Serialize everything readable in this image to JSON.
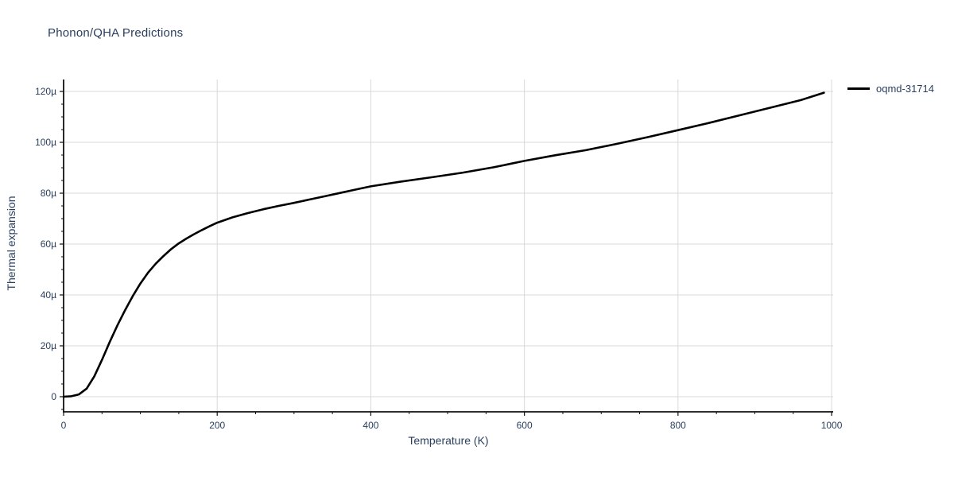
{
  "title": "Phonon/QHA Predictions",
  "colors": {
    "background": "#ffffff",
    "text": "#2a3f5f",
    "axis_line": "#111111",
    "gridline": "#d9d9d9",
    "series_line": "#000000"
  },
  "legend": {
    "items": [
      {
        "label": "oqmd-31714",
        "line_color": "#000000"
      }
    ]
  },
  "chart_data": {
    "type": "line",
    "title": "Phonon/QHA Predictions",
    "xlabel": "Temperature (K)",
    "ylabel": "Thermal expansion",
    "xlim": [
      0,
      1002
    ],
    "ylim": [
      -5.94,
      124.7
    ],
    "grid": true,
    "legend_position": "top-right-outside",
    "x_major_ticks": [
      0,
      200,
      400,
      600,
      800,
      1000
    ],
    "x_tick_labels": [
      "0",
      "200",
      "400",
      "600",
      "800",
      "1000"
    ],
    "x_minor_step": 50,
    "y_major_ticks": [
      0,
      20,
      40,
      60,
      80,
      100,
      120
    ],
    "y_tick_labels": [
      "0",
      "20µ",
      "40µ",
      "60µ",
      "80µ",
      "100µ",
      "120µ"
    ],
    "y_minor_step": 5,
    "series": [
      {
        "name": "oqmd-31714",
        "color": "#000000",
        "x": [
          0,
          10,
          20,
          30,
          40,
          50,
          60,
          70,
          80,
          90,
          100,
          110,
          120,
          130,
          140,
          150,
          160,
          170,
          180,
          190,
          200,
          220,
          240,
          260,
          280,
          300,
          320,
          340,
          360,
          380,
          400,
          440,
          480,
          520,
          560,
          600,
          640,
          680,
          720,
          760,
          800,
          840,
          880,
          920,
          960,
          990
        ],
        "y": [
          0,
          0.2,
          0.9,
          3.2,
          8,
          14.5,
          21.5,
          28,
          34,
          39.5,
          44.5,
          48.8,
          52.3,
          55.3,
          58,
          60.3,
          62.2,
          63.9,
          65.5,
          67,
          68.4,
          70.5,
          72.2,
          73.7,
          75,
          76.2,
          77.5,
          78.8,
          80.1,
          81.4,
          82.7,
          84.6,
          86.3,
          88.1,
          90.2,
          92.7,
          94.9,
          96.9,
          99.4,
          102,
          104.8,
          107.6,
          110.6,
          113.6,
          116.6,
          119.5
        ]
      }
    ]
  }
}
